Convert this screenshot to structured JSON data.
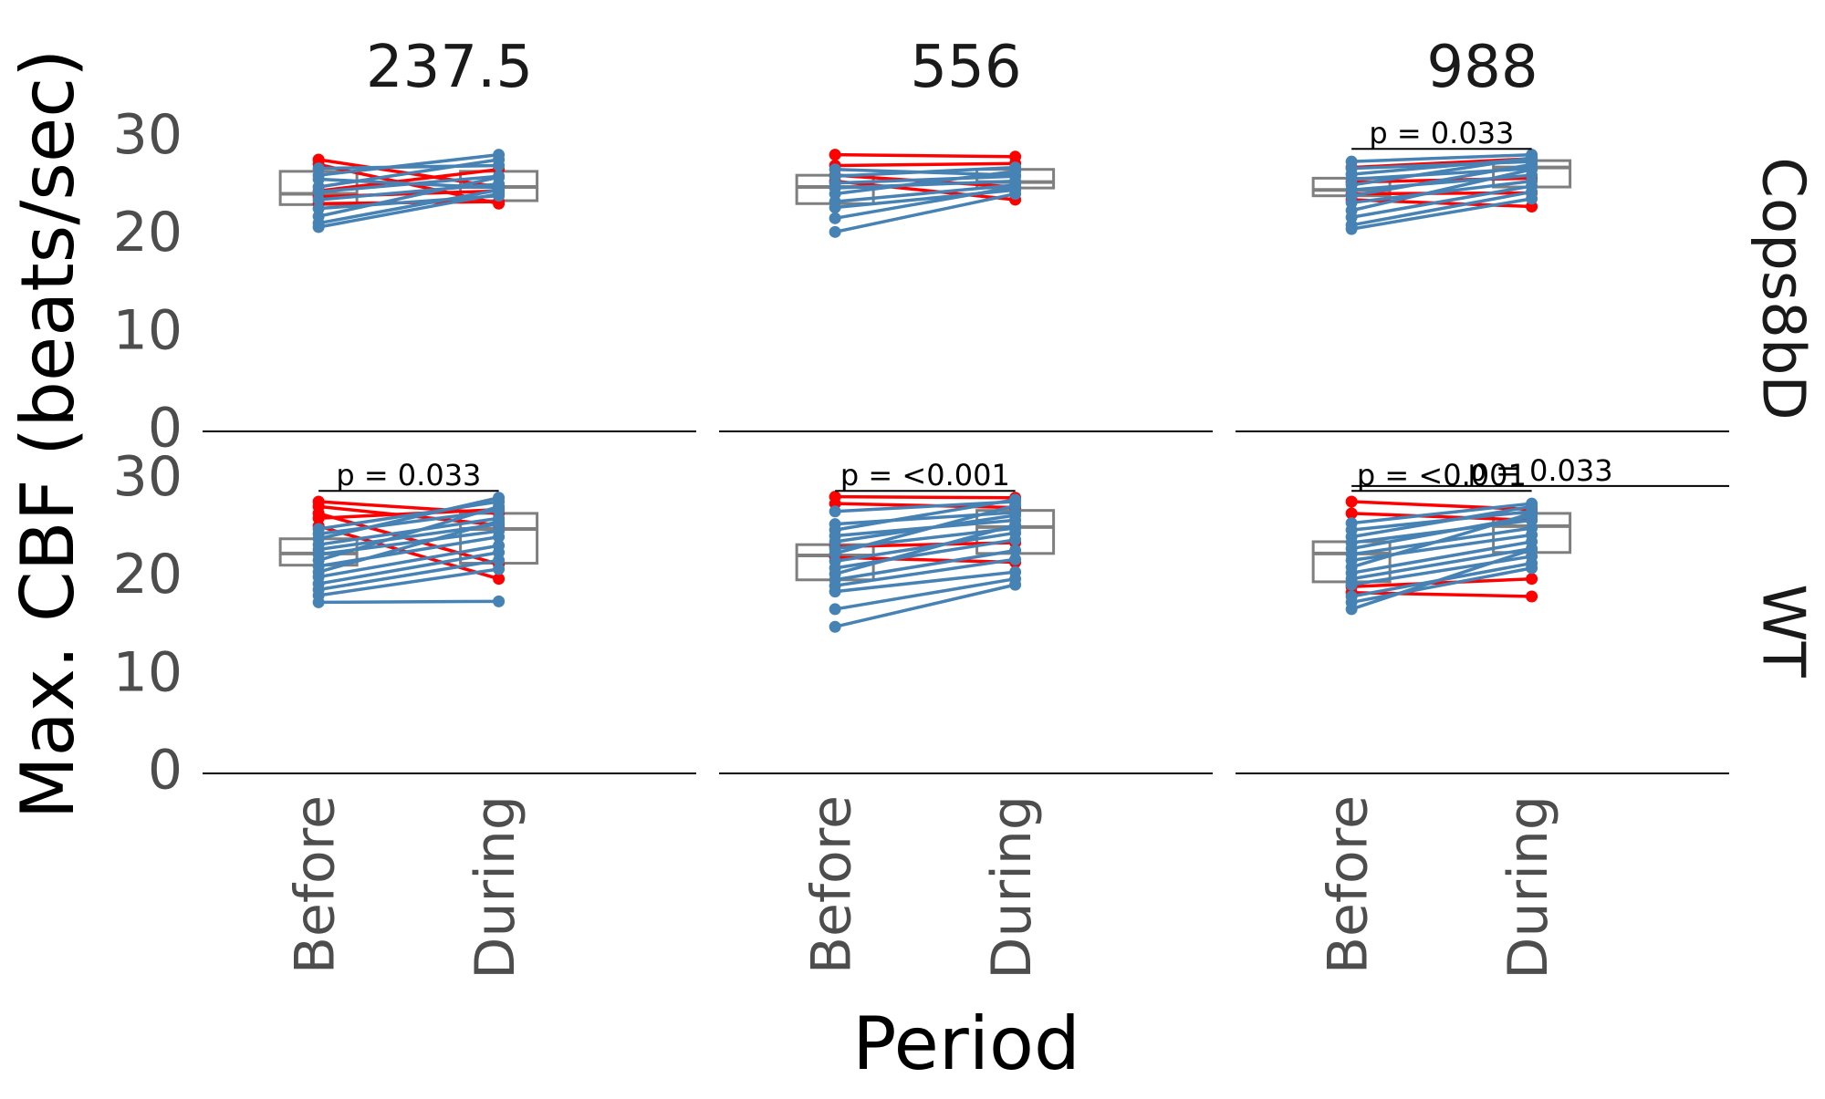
{
  "chart_data": {
    "type": "line",
    "ylabel": "Max. CBF (beats/sec)",
    "xlabel": "Period",
    "x_categories": [
      "Before",
      "During"
    ],
    "y_ticks": [
      "0",
      "10",
      "20",
      "30"
    ],
    "ylim": [
      0,
      32
    ],
    "column_facets": [
      "237.5",
      "556",
      "988"
    ],
    "row_facets": [
      "Cops8bD",
      "WT"
    ],
    "colors": {
      "red_group": "#ff0000",
      "blue_group": "#4682b4",
      "box": "#7f7f7f",
      "axis": "#000000"
    },
    "panels": [
      {
        "column": "237.5",
        "row": "Cops8bD",
        "box": {
          "Before": [
            23.2,
            24.3,
            26.6
          ],
          "During": [
            23.6,
            25.0,
            26.6
          ]
        },
        "pairs": [
          {
            "color": "red",
            "before": 27.8,
            "during": 25.0
          },
          {
            "color": "red",
            "before": 27.3,
            "during": 23.3
          },
          {
            "color": "red",
            "before": 24.6,
            "during": 26.8
          },
          {
            "color": "red",
            "before": 24.0,
            "during": 24.6
          },
          {
            "color": "red",
            "before": 23.3,
            "during": 23.5
          },
          {
            "color": "blue",
            "before": 26.9,
            "during": 27.2
          },
          {
            "color": "blue",
            "before": 26.2,
            "during": 28.3
          },
          {
            "color": "blue",
            "before": 25.8,
            "during": 24.9
          },
          {
            "color": "blue",
            "before": 25.0,
            "during": 27.8
          },
          {
            "color": "blue",
            "before": 24.5,
            "during": 26.1
          },
          {
            "color": "blue",
            "before": 23.7,
            "during": 25.3
          },
          {
            "color": "blue",
            "before": 22.8,
            "during": 24.1
          },
          {
            "color": "blue",
            "before": 22.0,
            "during": 26.0
          },
          {
            "color": "blue",
            "before": 21.3,
            "during": 24.7
          },
          {
            "color": "blue",
            "before": 20.9,
            "during": 24.3
          }
        ],
        "p_labels": []
      },
      {
        "column": "556",
        "row": "Cops8bD",
        "box": {
          "Before": [
            23.3,
            25.0,
            26.2
          ],
          "During": [
            24.9,
            25.5,
            26.8
          ]
        },
        "pairs": [
          {
            "color": "red",
            "before": 28.3,
            "during": 28.1
          },
          {
            "color": "red",
            "before": 27.2,
            "during": 27.4
          },
          {
            "color": "red",
            "before": 26.2,
            "during": 25.0
          },
          {
            "color": "red",
            "before": 25.6,
            "during": 23.7
          },
          {
            "color": "blue",
            "before": 26.8,
            "during": 26.2
          },
          {
            "color": "blue",
            "before": 26.1,
            "during": 27.0
          },
          {
            "color": "blue",
            "before": 25.4,
            "during": 26.1
          },
          {
            "color": "blue",
            "before": 24.9,
            "during": 25.6
          },
          {
            "color": "blue",
            "before": 24.3,
            "during": 26.6
          },
          {
            "color": "blue",
            "before": 23.5,
            "during": 25.2
          },
          {
            "color": "blue",
            "before": 22.9,
            "during": 24.7
          },
          {
            "color": "blue",
            "before": 21.8,
            "during": 25.0
          },
          {
            "color": "blue",
            "before": 20.4,
            "during": 24.3
          }
        ],
        "p_labels": []
      },
      {
        "column": "988",
        "row": "Cops8bD",
        "box": {
          "Before": [
            24.1,
            24.7,
            25.9
          ],
          "During": [
            25.0,
            27.0,
            27.7
          ]
        },
        "pairs": [
          {
            "color": "red",
            "before": 27.0,
            "during": 27.9
          },
          {
            "color": "red",
            "before": 25.5,
            "during": 25.9
          },
          {
            "color": "red",
            "before": 24.3,
            "during": 24.4
          },
          {
            "color": "red",
            "before": 23.7,
            "during": 23.0
          },
          {
            "color": "blue",
            "before": 27.6,
            "during": 28.3
          },
          {
            "color": "blue",
            "before": 26.9,
            "during": 27.6
          },
          {
            "color": "blue",
            "before": 26.3,
            "during": 27.9
          },
          {
            "color": "blue",
            "before": 25.8,
            "during": 26.9
          },
          {
            "color": "blue",
            "before": 25.2,
            "during": 28.0
          },
          {
            "color": "blue",
            "before": 24.7,
            "during": 26.2
          },
          {
            "color": "blue",
            "before": 24.1,
            "during": 27.3
          },
          {
            "color": "blue",
            "before": 23.4,
            "during": 25.6
          },
          {
            "color": "blue",
            "before": 22.6,
            "during": 26.8
          },
          {
            "color": "blue",
            "before": 21.9,
            "during": 25.1
          },
          {
            "color": "blue",
            "before": 21.1,
            "during": 24.5
          },
          {
            "color": "blue",
            "before": 20.7,
            "during": 23.8
          }
        ],
        "p_labels": [
          {
            "text": "p = 0.033",
            "y": 28.9,
            "from": "Before",
            "to": "During"
          }
        ]
      },
      {
        "column": "237.5",
        "row": "WT",
        "box": {
          "Before": [
            21.3,
            22.5,
            24.0
          ],
          "During": [
            21.5,
            25.0,
            26.6
          ]
        },
        "pairs": [
          {
            "color": "red",
            "before": 27.8,
            "during": 26.6
          },
          {
            "color": "red",
            "before": 27.3,
            "during": 25.4
          },
          {
            "color": "red",
            "before": 26.6,
            "during": 21.4
          },
          {
            "color": "red",
            "before": 26.1,
            "during": 27.0
          },
          {
            "color": "red",
            "before": 25.3,
            "during": 19.9
          },
          {
            "color": "blue",
            "before": 25.0,
            "during": 27.8
          },
          {
            "color": "blue",
            "before": 24.5,
            "during": 26.9
          },
          {
            "color": "blue",
            "before": 24.0,
            "during": 28.2
          },
          {
            "color": "blue",
            "before": 23.4,
            "during": 26.1
          },
          {
            "color": "blue",
            "before": 22.9,
            "during": 25.5
          },
          {
            "color": "blue",
            "before": 22.4,
            "during": 24.8
          },
          {
            "color": "blue",
            "before": 21.8,
            "during": 27.3
          },
          {
            "color": "blue",
            "before": 21.2,
            "during": 24.2
          },
          {
            "color": "blue",
            "before": 20.6,
            "during": 25.8
          },
          {
            "color": "blue",
            "before": 20.1,
            "during": 23.3
          },
          {
            "color": "blue",
            "before": 19.4,
            "during": 22.6
          },
          {
            "color": "blue",
            "before": 18.8,
            "during": 21.8
          },
          {
            "color": "blue",
            "before": 18.2,
            "during": 20.9
          },
          {
            "color": "blue",
            "before": 17.5,
            "during": 17.6
          }
        ],
        "p_labels": [
          {
            "text": "p = 0.033",
            "y": 28.9,
            "from": "Before",
            "to": "During"
          }
        ]
      },
      {
        "column": "556",
        "row": "WT",
        "box": {
          "Before": [
            19.8,
            22.3,
            23.4
          ],
          "During": [
            22.5,
            25.2,
            26.9
          ]
        },
        "pairs": [
          {
            "color": "red",
            "before": 28.3,
            "during": 28.2
          },
          {
            "color": "red",
            "before": 27.6,
            "during": 27.2
          },
          {
            "color": "red",
            "before": 23.2,
            "during": 23.6
          },
          {
            "color": "red",
            "before": 22.1,
            "during": 21.6
          },
          {
            "color": "blue",
            "before": 26.8,
            "during": 27.8
          },
          {
            "color": "blue",
            "before": 25.5,
            "during": 26.7
          },
          {
            "color": "blue",
            "before": 24.9,
            "during": 28.0
          },
          {
            "color": "blue",
            "before": 24.3,
            "during": 25.9
          },
          {
            "color": "blue",
            "before": 23.7,
            "during": 26.4
          },
          {
            "color": "blue",
            "before": 23.0,
            "during": 25.1
          },
          {
            "color": "blue",
            "before": 22.5,
            "during": 27.4
          },
          {
            "color": "blue",
            "before": 21.7,
            "during": 24.6
          },
          {
            "color": "blue",
            "before": 21.0,
            "during": 23.9
          },
          {
            "color": "blue",
            "before": 20.4,
            "during": 25.4
          },
          {
            "color": "blue",
            "before": 19.8,
            "during": 22.8
          },
          {
            "color": "blue",
            "before": 19.2,
            "during": 21.9
          },
          {
            "color": "blue",
            "before": 18.6,
            "during": 20.6
          },
          {
            "color": "blue",
            "before": 16.8,
            "during": 19.9
          },
          {
            "color": "blue",
            "before": 15.0,
            "during": 19.3
          }
        ],
        "p_labels": [
          {
            "text": "p = <0.001",
            "y": 28.9,
            "from": "Before",
            "to": "During"
          }
        ]
      },
      {
        "column": "988",
        "row": "WT",
        "box": {
          "Before": [
            19.6,
            22.5,
            23.7
          ],
          "During": [
            22.6,
            25.3,
            26.6
          ]
        },
        "pairs": [
          {
            "color": "red",
            "before": 27.8,
            "during": 27.0
          },
          {
            "color": "red",
            "before": 26.6,
            "during": 25.9
          },
          {
            "color": "red",
            "before": 19.1,
            "during": 19.9
          },
          {
            "color": "red",
            "before": 18.5,
            "during": 18.1
          },
          {
            "color": "blue",
            "before": 25.6,
            "during": 27.6
          },
          {
            "color": "blue",
            "before": 24.9,
            "during": 26.8
          },
          {
            "color": "blue",
            "before": 24.2,
            "during": 27.3
          },
          {
            "color": "blue",
            "before": 23.6,
            "during": 25.9
          },
          {
            "color": "blue",
            "before": 23.0,
            "during": 26.3
          },
          {
            "color": "blue",
            "before": 22.4,
            "during": 25.1
          },
          {
            "color": "blue",
            "before": 21.8,
            "during": 24.4
          },
          {
            "color": "blue",
            "before": 21.1,
            "during": 26.6
          },
          {
            "color": "blue",
            "before": 20.5,
            "during": 23.7
          },
          {
            "color": "blue",
            "before": 19.9,
            "during": 23.0
          },
          {
            "color": "blue",
            "before": 19.3,
            "during": 22.2
          },
          {
            "color": "blue",
            "before": 18.1,
            "during": 21.5
          },
          {
            "color": "blue",
            "before": 17.5,
            "during": 21.0
          },
          {
            "color": "blue",
            "before": 16.8,
            "during": 22.9
          }
        ],
        "p_labels": [
          {
            "text": "p = <0.001",
            "y": 28.9,
            "from": "Before",
            "to": "During"
          },
          {
            "text": "p = 0.033",
            "y": 29.4,
            "from": "Before",
            "to": "edge"
          }
        ]
      }
    ]
  }
}
